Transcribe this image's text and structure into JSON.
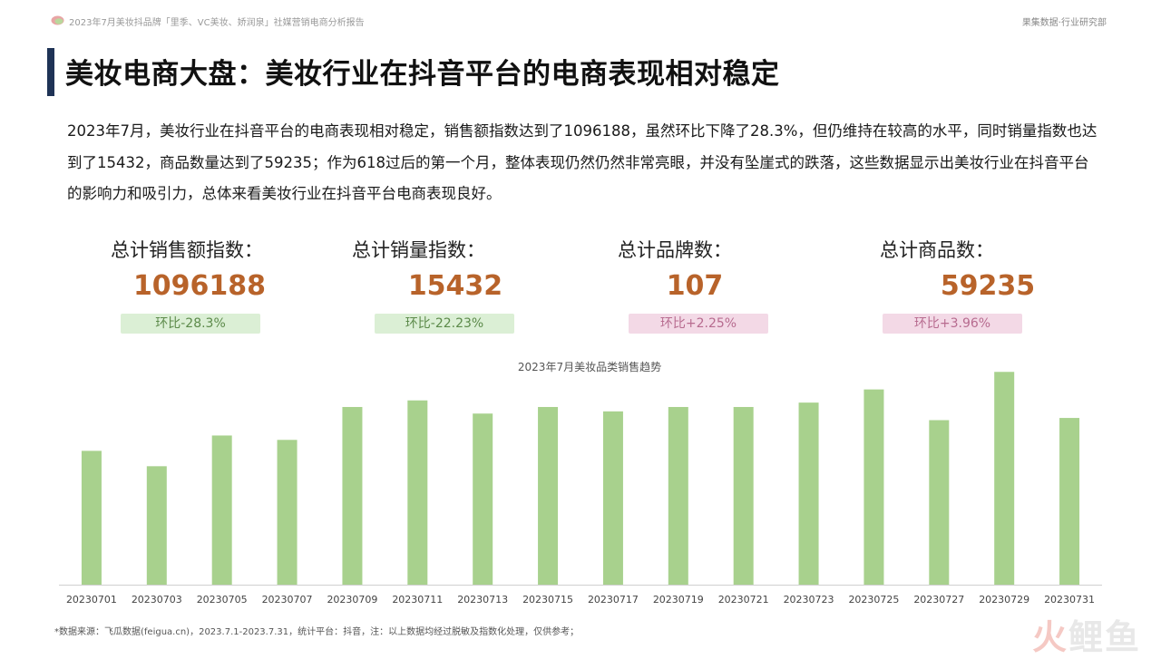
{
  "header": {
    "report_title": "2023年7月美妆抖品牌「里季、VC美妆、娇润泉」社媒营销电商分析报告",
    "brand": "果集数据·行业研究部"
  },
  "title": "美妆电商大盘：美妆行业在抖音平台的电商表现相对稳定",
  "intro": "2023年7月，美妆行业在抖音平台的电商表现相对稳定，销售额指数达到了1096188，虽然环比下降了28.3%，但仍维持在较高的水平，同时销量指数也达到了15432，商品数量达到了59235；作为618过后的第一个月，整体表现仍然仍然非常亮眼，并没有坠崖式的跌落，这些数据显示出美妆行业在抖音平台的影响力和吸引力，总体来看美妆行业在抖音平台电商表现良好。",
  "stats": [
    {
      "label": "总计销售额指数：",
      "value": "1096188",
      "badge": "环比-28.3%",
      "trend": "down"
    },
    {
      "label": "总计销量指数：",
      "value": "15432",
      "badge": "环比-22.23%",
      "trend": "down"
    },
    {
      "label": "总计品牌数：",
      "value": "107",
      "badge": "环比+2.25%",
      "trend": "up"
    },
    {
      "label": "总计商品数：",
      "value": "59235",
      "badge": "环比+3.96%",
      "trend": "up"
    }
  ],
  "colors": {
    "bar": "#a8d18d",
    "value_text": "#b8632a",
    "title_accent": "#1f3356",
    "badge_down_bg": "#dbefd5",
    "badge_up_bg": "#f3d9e6"
  },
  "chart_data": {
    "type": "bar",
    "title": "2023年7月美妆品类销售趋势",
    "categories": [
      "20230701",
      "20230703",
      "20230705",
      "20230707",
      "20230709",
      "20230711",
      "20230713",
      "20230715",
      "20230717",
      "20230719",
      "20230721",
      "20230723",
      "20230725",
      "20230727",
      "20230729",
      "20230731"
    ],
    "values": [
      61,
      54,
      68,
      66,
      81,
      84,
      78,
      81,
      79,
      81,
      81,
      83,
      89,
      75,
      97,
      76
    ],
    "ylim": [
      0,
      100
    ],
    "grid": false,
    "legend": "none",
    "xlabel": "",
    "ylabel": ""
  },
  "footnote": "*数据来源：飞瓜数据(feigua.cn)，2023.7.1-2023.7.31，统计平台：抖音，注：以上数据均经过脱敏及指数化处理，仅供参考；",
  "watermark": {
    "part1": "火",
    "part2": "鲤鱼"
  }
}
